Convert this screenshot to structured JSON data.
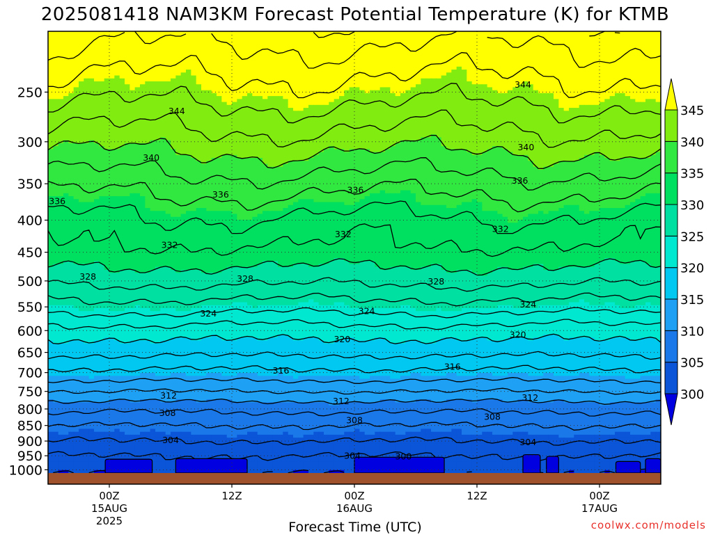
{
  "chart_data": {
    "type": "heatmap",
    "title": "2025081418 NAM3KM Forecast Potential Temperature (K) for KTMB",
    "xlabel": "Forecast Time (UTC)",
    "ylabel": "",
    "watermark": "coolwx.com/models",
    "x_ticks": [
      {
        "hour": 6,
        "label": "00Z",
        "sub1": "15AUG",
        "sub2": "2025"
      },
      {
        "hour": 18,
        "label": "12Z",
        "sub1": "",
        "sub2": ""
      },
      {
        "hour": 30,
        "label": "00Z",
        "sub1": "16AUG",
        "sub2": ""
      },
      {
        "hour": 42,
        "label": "12Z",
        "sub1": "",
        "sub2": ""
      },
      {
        "hour": 54,
        "label": "00Z",
        "sub1": "17AUG",
        "sub2": ""
      }
    ],
    "x_range": [
      0,
      60
    ],
    "y_scale": "log-pressure",
    "y_ticks": [
      250,
      300,
      350,
      400,
      450,
      500,
      550,
      600,
      650,
      700,
      750,
      800,
      850,
      900,
      950,
      1000
    ],
    "y_range": [
      1012,
      200
    ],
    "grid": true,
    "colorbar": {
      "levels": [
        300,
        305,
        310,
        315,
        320,
        325,
        330,
        335,
        340,
        345
      ],
      "labels": [
        "300",
        "305",
        "310",
        "315",
        "320",
        "325",
        "330",
        "335",
        "340",
        "345"
      ],
      "colors": [
        "#0000e0",
        "#0a55d8",
        "#1a78e8",
        "#1ea0f5",
        "#00c8f0",
        "#00e8d0",
        "#00e0a0",
        "#00e060",
        "#30e840",
        "#80ec10",
        "#b4f000",
        "#ffff00"
      ]
    },
    "contour_interval": 2,
    "profile_anchor_theta": [
      {
        "p": 200,
        "theta": 349
      },
      {
        "p": 250,
        "theta": 345
      },
      {
        "p": 300,
        "theta": 341
      },
      {
        "p": 350,
        "theta": 337
      },
      {
        "p": 400,
        "theta": 333.6
      },
      {
        "p": 450,
        "theta": 331.5
      },
      {
        "p": 500,
        "theta": 328.5
      },
      {
        "p": 550,
        "theta": 325
      },
      {
        "p": 600,
        "theta": 321
      },
      {
        "p": 650,
        "theta": 318.5
      },
      {
        "p": 700,
        "theta": 315.5
      },
      {
        "p": 750,
        "theta": 312
      },
      {
        "p": 800,
        "theta": 308.5
      },
      {
        "p": 850,
        "theta": 306
      },
      {
        "p": 900,
        "theta": 304
      },
      {
        "p": 950,
        "theta": 302
      },
      {
        "p": 1000,
        "theta": 300.5
      },
      {
        "p": 1012,
        "theta": 300
      }
    ],
    "contour_labels": [
      {
        "value": "344",
        "hour": 12.6,
        "p": 268
      },
      {
        "value": "344",
        "hour": 46.5,
        "p": 243
      },
      {
        "value": "340",
        "hour": 10.1,
        "p": 318
      },
      {
        "value": "340",
        "hour": 46.8,
        "p": 306
      },
      {
        "value": "336",
        "hour": 0.9,
        "p": 373
      },
      {
        "value": "336",
        "hour": 16.9,
        "p": 364
      },
      {
        "value": "336",
        "hour": 30.1,
        "p": 358
      },
      {
        "value": "336",
        "hour": 46.2,
        "p": 346
      },
      {
        "value": "332",
        "hour": 11.9,
        "p": 438
      },
      {
        "value": "332",
        "hour": 28.9,
        "p": 421
      },
      {
        "value": "332",
        "hour": 44.3,
        "p": 413
      },
      {
        "value": "328",
        "hour": 3.9,
        "p": 492
      },
      {
        "value": "328",
        "hour": 19.3,
        "p": 496
      },
      {
        "value": "328",
        "hour": 38.0,
        "p": 501
      },
      {
        "value": "324",
        "hour": 15.7,
        "p": 563
      },
      {
        "value": "324",
        "hour": 31.2,
        "p": 558
      },
      {
        "value": "324",
        "hour": 47.0,
        "p": 545
      },
      {
        "value": "320",
        "hour": 28.8,
        "p": 619
      },
      {
        "value": "320",
        "hour": 46.0,
        "p": 609
      },
      {
        "value": "316",
        "hour": 22.8,
        "p": 694
      },
      {
        "value": "316",
        "hour": 39.6,
        "p": 685
      },
      {
        "value": "312",
        "hour": 11.8,
        "p": 761
      },
      {
        "value": "312",
        "hour": 28.7,
        "p": 777
      },
      {
        "value": "312",
        "hour": 47.2,
        "p": 767
      },
      {
        "value": "308",
        "hour": 11.7,
        "p": 811
      },
      {
        "value": "308",
        "hour": 30.0,
        "p": 834
      },
      {
        "value": "308",
        "hour": 43.5,
        "p": 823
      },
      {
        "value": "304",
        "hour": 12.0,
        "p": 896
      },
      {
        "value": "304",
        "hour": 29.8,
        "p": 949
      },
      {
        "value": "304",
        "hour": 47.0,
        "p": 903
      },
      {
        "value": "300",
        "hour": 34.8,
        "p": 952
      }
    ],
    "cold_pockets": [
      {
        "hour_start": 5.6,
        "hour_end": 10.2,
        "p_top": 962
      },
      {
        "hour_start": 12.5,
        "hour_end": 19.5,
        "p_top": 960
      },
      {
        "hour_start": 30.0,
        "hour_end": 38.8,
        "p_top": 955
      },
      {
        "hour_start": 46.5,
        "hour_end": 48.2,
        "p_top": 946
      },
      {
        "hour_start": 48.8,
        "hour_end": 50.0,
        "p_top": 952
      },
      {
        "hour_start": 55.6,
        "hour_end": 58.0,
        "p_top": 970
      },
      {
        "hour_start": 58.5,
        "hour_end": 60.0,
        "p_top": 960
      }
    ]
  }
}
